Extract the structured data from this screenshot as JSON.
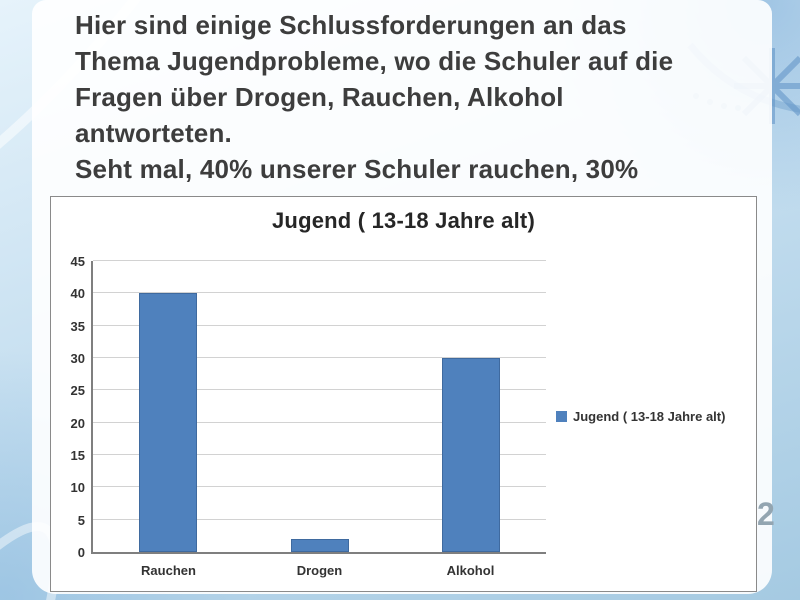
{
  "slide": {
    "text_lines": [
      "Hier sind einige Schlussforderungen an das",
      "Thema Jugendprobleme, wo die Schuler auf die",
      "Fragen über Drogen, Rauchen, Alkohol",
      "antworteten.",
      "Seht mal, 40% unserer Schuler rauchen, 30%"
    ],
    "page_number": "2"
  },
  "background": {
    "base_color": "#c6dff0",
    "accent_color": "#8fb8d8",
    "panel_color": "#ffffff"
  },
  "chart_data": {
    "type": "bar",
    "title": "Jugend ( 13-18 Jahre alt)",
    "categories": [
      "Rauchen",
      "Drogen",
      "Alkohol"
    ],
    "values": [
      40,
      2,
      30
    ],
    "xlabel": "",
    "ylabel": "",
    "ylim": [
      0,
      45
    ],
    "ytick_step": 5,
    "grid": true,
    "legend": [
      "Jugend ( 13-18 Jahre alt)"
    ],
    "legend_position": "right",
    "bar_color": "#4f81bd",
    "bar_border_color": "#3f6a9f"
  }
}
